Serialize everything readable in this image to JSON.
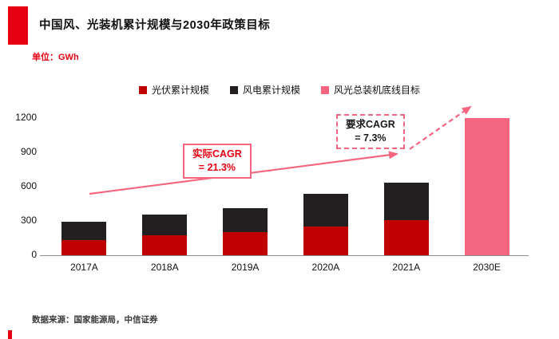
{
  "page": {
    "title": "中国风、光装机累计规模与2030年政策目标",
    "unit_label": "单位：GWh",
    "source": "数据来源：国家能源局，中信证券"
  },
  "colors": {
    "brand_red": "#e60012",
    "solar_red": "#c00000",
    "wind_black": "#231f20",
    "target_pink": "#f4657f"
  },
  "legend": [
    {
      "label": "光伏累计规模",
      "color": "#c00000"
    },
    {
      "label": "风电累计规模",
      "color": "#231f20"
    },
    {
      "label": "风光总装机底线目标",
      "color": "#f4657f"
    }
  ],
  "annotations": {
    "actual_cagr": {
      "line1": "实际CAGR",
      "line2": "= 21.3%"
    },
    "required_cagr": {
      "line1": "要求CAGR",
      "line2": "= 7.3%"
    }
  },
  "chart_data": {
    "type": "bar",
    "stacked": true,
    "title": "中国风、光装机累计规模与2030年政策目标",
    "ylabel": "GWh",
    "ylim": [
      0,
      1200
    ],
    "yticks": [
      0,
      300,
      600,
      900,
      1200
    ],
    "categories": [
      "2017A",
      "2018A",
      "2019A",
      "2020A",
      "2021A",
      "2030E"
    ],
    "series": [
      {
        "name": "光伏累计规模",
        "color": "#c00000",
        "values": [
          130,
          174,
          204,
          253,
          306,
          0
        ]
      },
      {
        "name": "风电累计规模",
        "color": "#231f20",
        "values": [
          164,
          184,
          210,
          282,
          328,
          0
        ]
      },
      {
        "name": "风光总装机底线目标",
        "color": "#f4657f",
        "values": [
          0,
          0,
          0,
          0,
          0,
          1200
        ]
      }
    ],
    "legend_position": "top",
    "grid": false
  }
}
